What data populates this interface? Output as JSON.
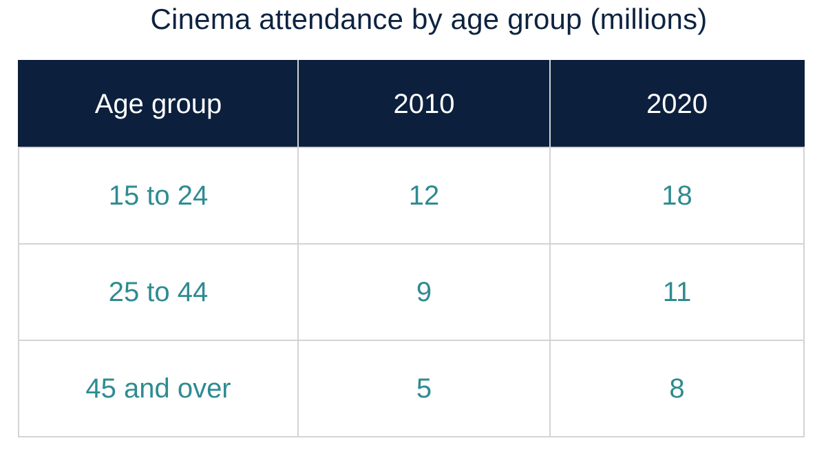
{
  "chart_data": {
    "type": "table",
    "title": "Cinema attendance by age group (millions)",
    "columns": [
      "Age group",
      "2010",
      "2020"
    ],
    "rows": [
      [
        "15 to 24",
        12,
        18
      ],
      [
        "25 to 44",
        9,
        11
      ],
      [
        "45 and over",
        5,
        8
      ]
    ]
  },
  "colors": {
    "header_background": "#0c203d",
    "header_text": "#ffffff",
    "cell_text": "#2e8b91",
    "title_text": "#0d2340",
    "grid_lines": "#d3d3d3"
  }
}
